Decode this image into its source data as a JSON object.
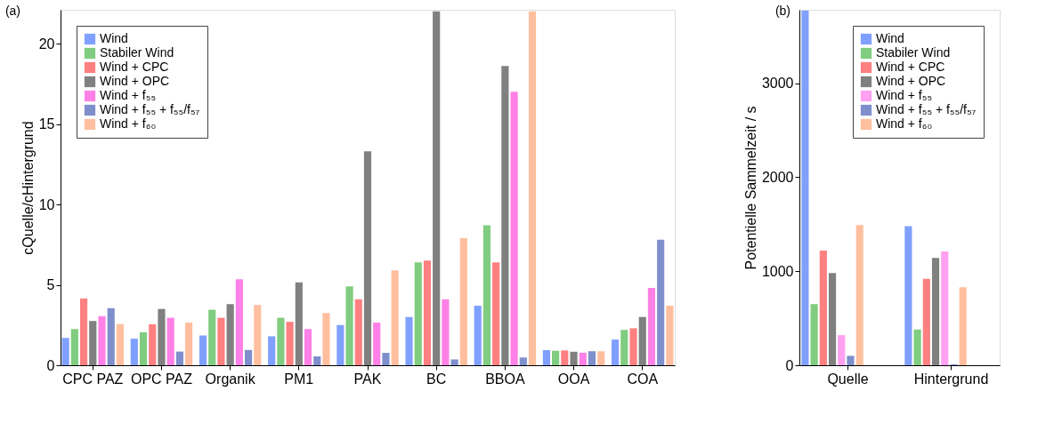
{
  "chart_data": [
    {
      "type": "bar",
      "annotations": [
        "(a)"
      ],
      "ylabel": "cQuelle/cHintergrund",
      "categories": [
        "CPC PAZ",
        "OPC PAZ",
        "Organik",
        "PM1",
        "PAK",
        "BC",
        "BBOA",
        "OOA",
        "COA"
      ],
      "ylim": [
        0,
        22.1
      ],
      "yticks": [
        0,
        5,
        10,
        15,
        20
      ],
      "grid": false,
      "legend": "top left",
      "series": [
        {
          "name": "Wind",
          "color": "#80a0ff",
          "values": [
            1.7,
            1.65,
            1.85,
            1.8,
            2.5,
            3.0,
            3.7,
            0.94,
            1.6
          ]
        },
        {
          "name": "Stabiler Wind",
          "color": "#80cc80",
          "values": [
            2.25,
            2.05,
            3.45,
            2.95,
            4.9,
            6.4,
            8.7,
            0.9,
            2.2
          ]
        },
        {
          "name": "Wind + CPC",
          "color": "#ff8080",
          "values": [
            4.15,
            2.55,
            2.95,
            2.7,
            4.1,
            6.5,
            6.4,
            0.92,
            2.3
          ]
        },
        {
          "name": "Wind + OPC",
          "color": "#808080",
          "values": [
            2.75,
            3.5,
            3.8,
            5.15,
            13.3,
            22.0,
            18.6,
            0.84,
            3.0
          ]
        },
        {
          "name": "Wind + f₅₅",
          "color": "#ff80e6",
          "values": [
            3.05,
            2.95,
            5.35,
            2.25,
            2.65,
            4.1,
            17.0,
            0.78,
            4.8
          ]
        },
        {
          "name": "Wind + f₅₅ + f₅₅/f₅₇",
          "color": "#7f8fcc",
          "values": [
            3.55,
            0.85,
            0.95,
            0.55,
            0.77,
            0.36,
            0.48,
            0.87,
            7.8
          ]
        },
        {
          "name": "Wind + f₆₀",
          "color": "#ffbf9f",
          "values": [
            2.55,
            2.65,
            3.75,
            3.25,
            5.9,
            7.9,
            22.0,
            0.87,
            3.7
          ]
        }
      ]
    },
    {
      "type": "bar",
      "annotations": [
        "(b)"
      ],
      "ylabel": "Potentielle Sammelzeit / s",
      "categories": [
        "Quelle",
        "Hintergrund"
      ],
      "ylim": [
        0,
        3780
      ],
      "yticks": [
        0,
        1000,
        2000,
        3000
      ],
      "grid": false,
      "legend": "top right",
      "series": [
        {
          "name": "Wind",
          "color": "#80a0ff",
          "values": [
            3770,
            1480
          ]
        },
        {
          "name": "Stabiler Wind",
          "color": "#80cc80",
          "values": [
            650,
            380
          ]
        },
        {
          "name": "Wind + CPC",
          "color": "#ff8080",
          "values": [
            1220,
            920
          ]
        },
        {
          "name": "Wind + OPC",
          "color": "#808080",
          "values": [
            980,
            1140
          ]
        },
        {
          "name": "Wind + f₅₅",
          "color": "#ffa0f0",
          "values": [
            320,
            1210
          ]
        },
        {
          "name": "Wind + f₅₅ + f₅₅/f₅₇",
          "color": "#7f8fcc",
          "values": [
            100,
            10
          ]
        },
        {
          "name": "Wind + f₆₀",
          "color": "#ffbf9f",
          "values": [
            1490,
            830
          ]
        }
      ]
    }
  ]
}
